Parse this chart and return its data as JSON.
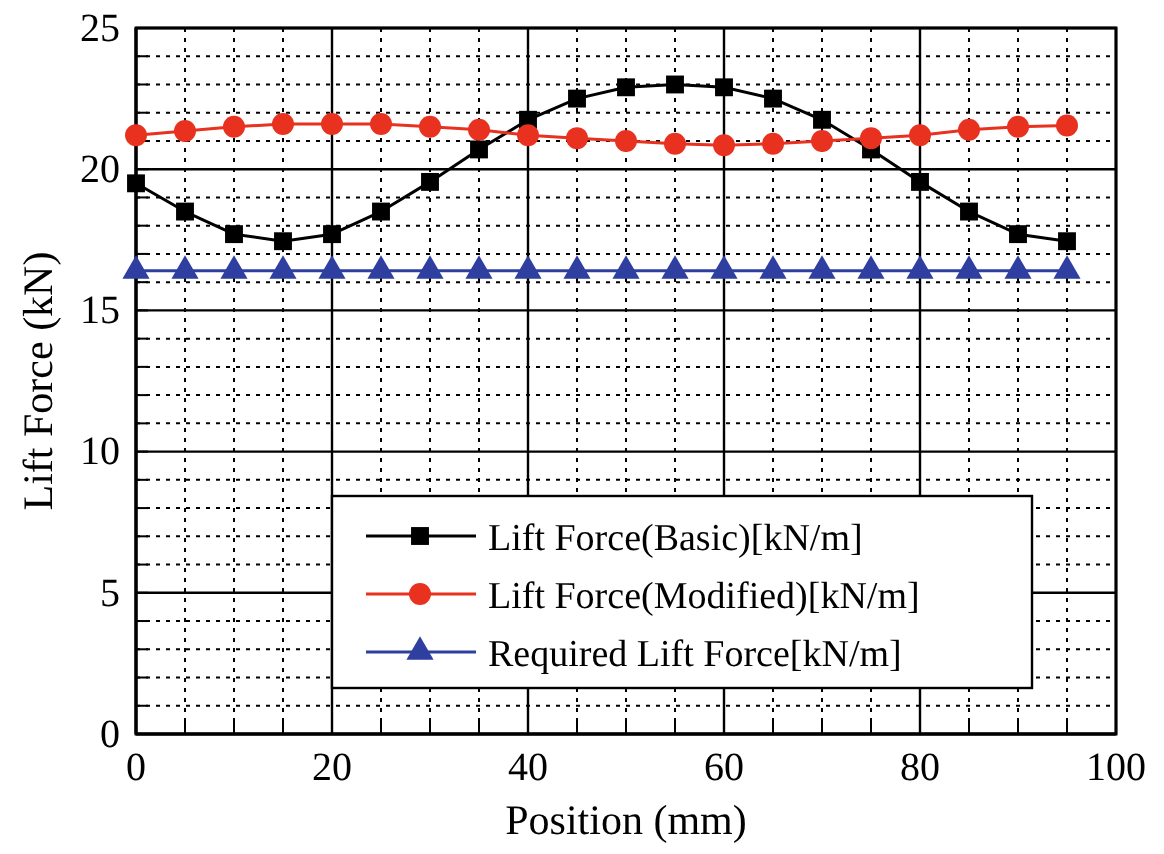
{
  "chart_data": {
    "type": "line",
    "xlabel": "Position (mm)",
    "ylabel": "Lift Force (kN)",
    "x": [
      0,
      5,
      10,
      15,
      20,
      25,
      30,
      35,
      40,
      45,
      50,
      55,
      60,
      65,
      70,
      75,
      80,
      85,
      90,
      95
    ],
    "series": [
      {
        "name": "Lift Force(Basic)[kN/m]",
        "color": "#000000",
        "marker": "square",
        "values": [
          19.5,
          18.5,
          17.7,
          17.45,
          17.7,
          18.5,
          19.55,
          20.7,
          21.75,
          22.5,
          22.9,
          23.0,
          22.9,
          22.5,
          21.75,
          20.7,
          19.55,
          18.5,
          17.7,
          17.45
        ]
      },
      {
        "name": "Lift Force(Modified)[kN/m]",
        "color": "#e8311f",
        "marker": "circle",
        "values": [
          21.2,
          21.35,
          21.5,
          21.6,
          21.6,
          21.6,
          21.5,
          21.4,
          21.2,
          21.1,
          21.0,
          20.9,
          20.85,
          20.9,
          21.0,
          21.1,
          21.2,
          21.4,
          21.5,
          21.55
        ]
      },
      {
        "name": "Required Lift Force[kN/m]",
        "color": "#2e3fa0",
        "marker": "triangle",
        "values": [
          16.4,
          16.4,
          16.4,
          16.4,
          16.4,
          16.4,
          16.4,
          16.4,
          16.4,
          16.4,
          16.4,
          16.4,
          16.4,
          16.4,
          16.4,
          16.4,
          16.4,
          16.4,
          16.4,
          16.4
        ]
      }
    ],
    "xlim": [
      0,
      100
    ],
    "xticks": [
      0,
      {
        "value": 5,
        "label": null
      },
      {
        "value": 10,
        "label": null
      },
      {
        "value": 15,
        "label": null
      },
      20,
      {
        "value": 25,
        "label": null
      },
      {
        "value": 30,
        "label": null
      },
      {
        "value": 35,
        "label": null
      },
      40,
      {
        "value": 45,
        "label": null
      },
      {
        "value": 50,
        "label": null
      },
      {
        "value": 55,
        "label": null
      },
      60,
      {
        "value": 65,
        "label": null
      },
      {
        "value": 70,
        "label": null
      },
      {
        "value": 75,
        "label": null
      },
      80,
      {
        "value": 85,
        "label": null
      },
      {
        "value": 90,
        "label": null
      },
      {
        "value": 95,
        "label": null
      },
      100
    ],
    "ylim": [
      0,
      25
    ],
    "yticks": [
      0,
      {
        "value": 1,
        "label": null
      },
      {
        "value": 2,
        "label": null
      },
      {
        "value": 3,
        "label": null
      },
      {
        "value": 4,
        "label": null
      },
      5,
      {
        "value": 6,
        "label": null
      },
      {
        "value": 7,
        "label": null
      },
      {
        "value": 8,
        "label": null
      },
      {
        "value": 9,
        "label": null
      },
      10,
      {
        "value": 11,
        "label": null
      },
      {
        "value": 12,
        "label": null
      },
      {
        "value": 13,
        "label": null
      },
      {
        "value": 14,
        "label": null
      },
      15,
      {
        "value": 16,
        "label": null
      },
      {
        "value": 17,
        "label": null
      },
      {
        "value": 18,
        "label": null
      },
      {
        "value": 19,
        "label": null
      },
      20,
      {
        "value": 21,
        "label": null
      },
      {
        "value": 22,
        "label": null
      },
      {
        "value": 23,
        "label": null
      },
      {
        "value": 24,
        "label": null
      },
      25
    ],
    "grid": true,
    "legend": "bottom",
    "line_style": "solid"
  }
}
